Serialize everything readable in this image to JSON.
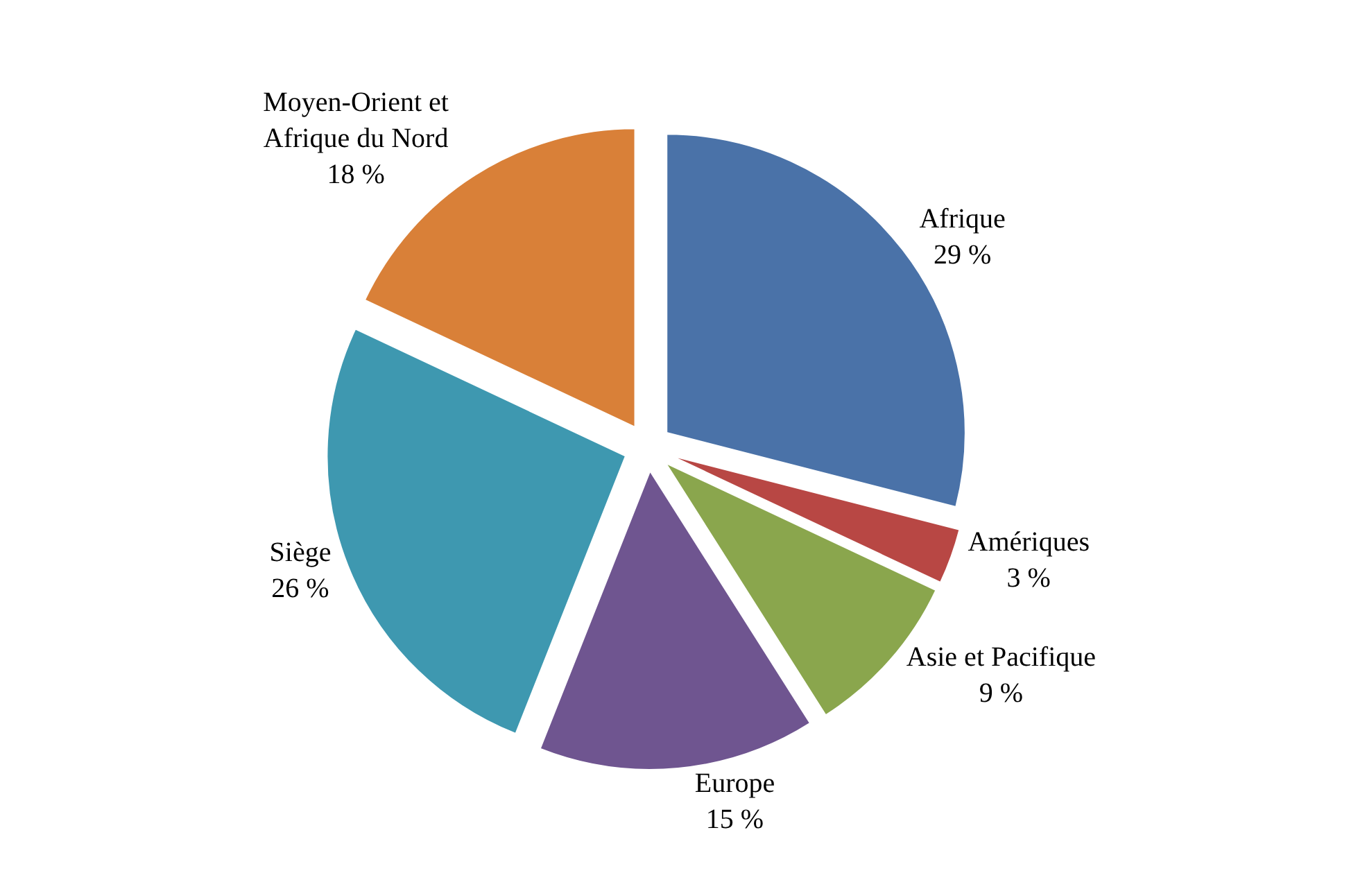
{
  "chart_data": {
    "type": "pie",
    "categories": [
      "Afrique",
      "Amériques",
      "Asie et Pacifique",
      "Europe",
      "Siège",
      "Moyen-Orient et Afrique du Nord"
    ],
    "values": [
      29,
      3,
      9,
      15,
      26,
      18
    ],
    "value_labels": [
      "29 %",
      "3 %",
      "9 %",
      "15 %",
      "26 %",
      "18 %"
    ],
    "colors": [
      "#4a72a8",
      "#b84744",
      "#8aa64d",
      "#6f5590",
      "#3e98b0",
      "#d98038"
    ],
    "legend": false
  }
}
